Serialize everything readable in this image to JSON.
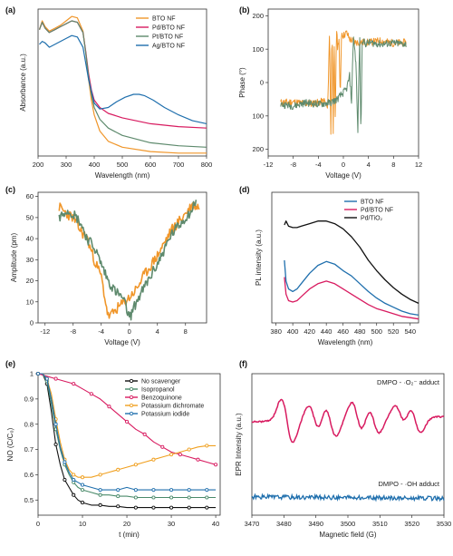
{
  "chart_data": [
    {
      "type": "line",
      "panel": "(a)",
      "xlabel": "Wavelength (nm)",
      "ylabel": "Absorbance (a.u.)",
      "xlim": [
        200,
        800
      ],
      "ylim": [
        0,
        1
      ],
      "xticks": [
        200,
        300,
        400,
        500,
        600,
        700,
        800
      ],
      "yticks": [],
      "legend": "top-right",
      "series": [
        {
          "name": "BTO NF",
          "color": "#f0962a",
          "x": [
            205,
            215,
            225,
            240,
            260,
            280,
            300,
            320,
            340,
            360,
            370,
            380,
            390,
            400,
            420,
            450,
            500,
            600,
            700,
            800
          ],
          "y": [
            0.86,
            0.92,
            0.88,
            0.85,
            0.87,
            0.89,
            0.92,
            0.95,
            0.94,
            0.85,
            0.7,
            0.52,
            0.38,
            0.28,
            0.17,
            0.1,
            0.06,
            0.03,
            0.02,
            0.02
          ]
        },
        {
          "name": "Pd/BTO NF",
          "color": "#d81b60",
          "x": [
            205,
            215,
            225,
            240,
            260,
            280,
            300,
            320,
            340,
            360,
            370,
            380,
            390,
            400,
            420,
            450,
            500,
            600,
            700,
            800
          ],
          "y": [
            0.86,
            0.91,
            0.87,
            0.84,
            0.86,
            0.88,
            0.9,
            0.92,
            0.91,
            0.84,
            0.71,
            0.56,
            0.45,
            0.38,
            0.33,
            0.29,
            0.26,
            0.22,
            0.2,
            0.19
          ]
        },
        {
          "name": "Pt/BTO NF",
          "color": "#5e8a6d",
          "x": [
            205,
            215,
            225,
            240,
            260,
            280,
            300,
            320,
            340,
            360,
            370,
            380,
            390,
            400,
            420,
            450,
            500,
            600,
            700,
            800
          ],
          "y": [
            0.86,
            0.91,
            0.87,
            0.84,
            0.86,
            0.88,
            0.9,
            0.92,
            0.91,
            0.84,
            0.7,
            0.54,
            0.42,
            0.33,
            0.25,
            0.19,
            0.14,
            0.09,
            0.07,
            0.06
          ]
        },
        {
          "name": "Ag/BTO NF",
          "color": "#1f6fad",
          "x": [
            205,
            215,
            225,
            240,
            260,
            280,
            300,
            320,
            340,
            360,
            380,
            400,
            420,
            450,
            480,
            510,
            540,
            560,
            580,
            610,
            650,
            700,
            750,
            800
          ],
          "y": [
            0.76,
            0.78,
            0.77,
            0.74,
            0.76,
            0.78,
            0.8,
            0.82,
            0.81,
            0.74,
            0.52,
            0.36,
            0.32,
            0.33,
            0.37,
            0.4,
            0.42,
            0.42,
            0.41,
            0.38,
            0.33,
            0.28,
            0.24,
            0.22
          ]
        }
      ]
    },
    {
      "type": "line",
      "panel": "(b)",
      "xlabel": "Voltage (V)",
      "ylabel": "Phase (°)",
      "xlim": [
        -12,
        12
      ],
      "ylim": [
        -220,
        220
      ],
      "xticks": [
        -12,
        -8,
        -4,
        0,
        4,
        8,
        12
      ],
      "yticks": [
        -200,
        -100,
        0,
        100,
        200
      ],
      "ytick_labels": [
        "200",
        "100",
        "0",
        "100",
        "200"
      ],
      "series": [
        {
          "color": "#f0962a",
          "x": [
            -10,
            -8,
            -6,
            -4,
            -3,
            -2.5,
            -2.2,
            -2,
            -1.8,
            -1.6,
            -1.5,
            -1.3,
            -1.1,
            -0.9,
            -0.7,
            -0.5,
            -0.3,
            0,
            0.5,
            1,
            2,
            4,
            6,
            8,
            10
          ],
          "y": [
            -60,
            -58,
            -63,
            -60,
            -55,
            -80,
            160,
            -150,
            170,
            -170,
            150,
            -120,
            165,
            100,
            140,
            -60,
            150,
            140,
            150,
            130,
            120,
            120,
            125,
            118,
            120
          ]
        },
        {
          "color": "#5e8a6d",
          "x": [
            -10,
            -8,
            -6,
            -4,
            -2,
            -1,
            -0.5,
            0,
            0.5,
            1,
            1.3,
            1.6,
            2,
            2.3,
            2.6,
            2.8,
            3,
            3.5,
            4,
            6,
            8,
            10
          ],
          "y": [
            -65,
            -70,
            -60,
            -65,
            -60,
            -50,
            -40,
            -30,
            -20,
            20,
            -60,
            140,
            60,
            -150,
            150,
            -170,
            130,
            115,
            120,
            115,
            118,
            115
          ]
        }
      ]
    },
    {
      "type": "line",
      "panel": "(c)",
      "xlabel": "Voltage (V)",
      "ylabel": "Amplitude (pm)",
      "xlim": [
        -13,
        11
      ],
      "ylim": [
        0,
        62
      ],
      "xticks": [
        -12,
        -8,
        -4,
        0,
        4,
        8
      ],
      "yticks": [
        0,
        10,
        20,
        30,
        40,
        50,
        60
      ],
      "series": [
        {
          "color": "#f0962a",
          "x": [
            -10,
            -9,
            -8,
            -7,
            -6,
            -5,
            -4,
            -3.5,
            -3,
            -2.5,
            -2,
            -1,
            0,
            1,
            2,
            3,
            4,
            5,
            6,
            7,
            8,
            9,
            10
          ],
          "y": [
            55,
            52,
            50,
            44,
            40,
            30,
            22,
            12,
            3,
            4,
            6,
            9,
            12,
            16,
            22,
            27,
            32,
            38,
            44,
            48,
            52,
            56,
            55
          ]
        },
        {
          "color": "#5e8a6d",
          "x": [
            -10,
            -9,
            -8,
            -7,
            -6,
            -5,
            -4,
            -3,
            -2,
            -1,
            -0.5,
            0,
            0.5,
            1,
            2,
            3,
            4,
            5,
            6,
            7,
            8,
            9,
            9.5
          ],
          "y": [
            50,
            54,
            52,
            48,
            40,
            36,
            28,
            20,
            15,
            12,
            8,
            2,
            6,
            10,
            16,
            22,
            28,
            35,
            42,
            46,
            50,
            54,
            59
          ]
        }
      ]
    },
    {
      "type": "line",
      "panel": "(d)",
      "xlabel": "Wavelength (nm)",
      "ylabel": "PL intensity (a.u.)",
      "xlim": [
        375,
        550
      ],
      "ylim": [
        0,
        1
      ],
      "xticks": [
        380,
        400,
        420,
        440,
        460,
        480,
        500,
        520,
        540
      ],
      "yticks": [],
      "legend": "top-right",
      "series": [
        {
          "name": "BTO NF",
          "color": "#1f6fad",
          "x": [
            390,
            392,
            395,
            400,
            405,
            410,
            420,
            430,
            440,
            450,
            460,
            470,
            480,
            490,
            500,
            510,
            520,
            530,
            540,
            550
          ],
          "y": [
            0.48,
            0.32,
            0.26,
            0.24,
            0.26,
            0.3,
            0.38,
            0.44,
            0.47,
            0.45,
            0.4,
            0.36,
            0.3,
            0.24,
            0.19,
            0.15,
            0.12,
            0.09,
            0.07,
            0.06
          ]
        },
        {
          "name": "Pd/BTO NF",
          "color": "#d81b60",
          "x": [
            390,
            392,
            395,
            400,
            405,
            410,
            420,
            430,
            440,
            450,
            460,
            470,
            480,
            490,
            500,
            510,
            520,
            530,
            540,
            550
          ],
          "y": [
            0.35,
            0.22,
            0.17,
            0.16,
            0.17,
            0.2,
            0.26,
            0.3,
            0.32,
            0.3,
            0.26,
            0.22,
            0.18,
            0.14,
            0.11,
            0.09,
            0.07,
            0.05,
            0.04,
            0.03
          ]
        },
        {
          "name": "Pd/TiO₂",
          "color": "#111111",
          "x": [
            390,
            392,
            395,
            400,
            405,
            410,
            420,
            430,
            440,
            450,
            460,
            470,
            480,
            490,
            500,
            510,
            520,
            530,
            540,
            550
          ],
          "y": [
            0.75,
            0.78,
            0.74,
            0.73,
            0.73,
            0.74,
            0.76,
            0.78,
            0.78,
            0.76,
            0.72,
            0.66,
            0.58,
            0.48,
            0.4,
            0.33,
            0.27,
            0.22,
            0.18,
            0.15
          ]
        }
      ]
    },
    {
      "type": "line",
      "panel": "(e)",
      "xlabel": "t (min)",
      "ylabel": "NO (C/C₀)",
      "xlim": [
        0,
        41
      ],
      "ylim": [
        0.44,
        1.0
      ],
      "xticks": [
        0,
        10,
        20,
        30,
        40
      ],
      "yticks": [
        0.5,
        0.6,
        0.7,
        0.8,
        0.9,
        1.0
      ],
      "legend": "top-right",
      "series": [
        {
          "name": "No scavenger",
          "color": "#111111",
          "x": [
            0,
            1,
            2,
            3,
            4,
            5,
            6,
            7,
            8,
            9,
            10,
            12,
            14,
            16,
            18,
            20,
            22,
            24,
            26,
            28,
            30,
            32,
            34,
            36,
            38,
            40
          ],
          "y": [
            1,
            1,
            0.96,
            0.85,
            0.72,
            0.64,
            0.58,
            0.55,
            0.52,
            0.5,
            0.49,
            0.48,
            0.48,
            0.475,
            0.475,
            0.47,
            0.47,
            0.47,
            0.47,
            0.47,
            0.47,
            0.47,
            0.47,
            0.47,
            0.47,
            0.47
          ]
        },
        {
          "name": "Isopropanol",
          "color": "#4a8a6a",
          "x": [
            0,
            1,
            2,
            3,
            4,
            5,
            6,
            7,
            8,
            9,
            10,
            12,
            14,
            16,
            18,
            20,
            22,
            24,
            26,
            28,
            30,
            32,
            34,
            36,
            38,
            40
          ],
          "y": [
            1,
            1,
            0.97,
            0.88,
            0.78,
            0.7,
            0.64,
            0.6,
            0.57,
            0.55,
            0.54,
            0.53,
            0.52,
            0.52,
            0.515,
            0.515,
            0.51,
            0.51,
            0.51,
            0.51,
            0.51,
            0.51,
            0.51,
            0.51,
            0.51,
            0.51
          ]
        },
        {
          "name": "Benzoquinone",
          "color": "#d81b60",
          "x": [
            0,
            2,
            4,
            6,
            8,
            10,
            12,
            14,
            16,
            18,
            20,
            22,
            24,
            26,
            28,
            30,
            32,
            34,
            36,
            38,
            40
          ],
          "y": [
            1,
            0.99,
            0.98,
            0.97,
            0.96,
            0.94,
            0.92,
            0.9,
            0.87,
            0.84,
            0.81,
            0.78,
            0.76,
            0.73,
            0.71,
            0.69,
            0.68,
            0.67,
            0.66,
            0.65,
            0.64
          ]
        },
        {
          "name": "Potassium dichromate",
          "color": "#f0a020",
          "x": [
            0,
            1,
            2,
            3,
            4,
            5,
            6,
            7,
            8,
            9,
            10,
            12,
            14,
            16,
            18,
            20,
            22,
            24,
            26,
            28,
            30,
            32,
            34,
            36,
            38,
            40
          ],
          "y": [
            1,
            1,
            0.98,
            0.92,
            0.82,
            0.73,
            0.66,
            0.62,
            0.6,
            0.59,
            0.59,
            0.59,
            0.6,
            0.61,
            0.62,
            0.63,
            0.64,
            0.65,
            0.66,
            0.67,
            0.68,
            0.69,
            0.7,
            0.71,
            0.715,
            0.715
          ]
        },
        {
          "name": "Potassium iodide",
          "color": "#1f6fad",
          "x": [
            0,
            1,
            2,
            3,
            4,
            5,
            6,
            7,
            8,
            9,
            10,
            12,
            14,
            16,
            18,
            20,
            22,
            24,
            26,
            28,
            30,
            32,
            34,
            36,
            38,
            40
          ],
          "y": [
            1,
            1,
            0.98,
            0.9,
            0.8,
            0.71,
            0.65,
            0.61,
            0.58,
            0.57,
            0.56,
            0.55,
            0.54,
            0.54,
            0.54,
            0.55,
            0.54,
            0.54,
            0.54,
            0.54,
            0.54,
            0.54,
            0.54,
            0.54,
            0.54,
            0.54
          ]
        }
      ]
    },
    {
      "type": "line",
      "panel": "(f)",
      "xlabel": "Magnetic field (G)",
      "ylabel": "EPR Intensity (a.u.)",
      "xlim": [
        3470,
        3530
      ],
      "ylim": [
        0,
        1
      ],
      "xticks": [
        3470,
        3480,
        3490,
        3500,
        3510,
        3520,
        3530
      ],
      "yticks": [],
      "annotations": [
        "DMPO - ·O₂⁻ adduct",
        "DMPO - ·OH adduct"
      ],
      "series": [
        {
          "color": "#d81b60"
        },
        {
          "color": "#1f6fad"
        }
      ]
    }
  ]
}
